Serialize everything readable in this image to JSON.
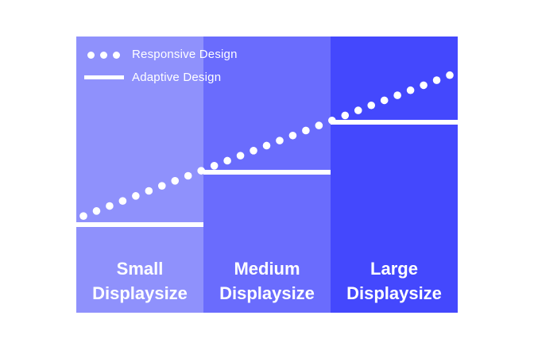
{
  "colors": {
    "small_bg": "#8f91fc",
    "medium_bg": "#6a6cfd",
    "large_bg": "#4448fd",
    "marks": "#ffffff",
    "background": "#ffffff"
  },
  "legend": {
    "responsive_label": "Responsive Design",
    "adaptive_label": "Adaptive Design",
    "responsive_icon": "dotted-line-icon",
    "adaptive_icon": "solid-line-icon"
  },
  "columns": [
    {
      "line1": "Small",
      "line2": "Displaysize",
      "adaptive_level": 0.32
    },
    {
      "line1": "Medium",
      "line2": "Displaysize",
      "adaptive_level": 0.51
    },
    {
      "line1": "Large",
      "line2": "Displaysize",
      "adaptive_level": 0.69
    }
  ],
  "responsive_trend": {
    "start_level": 0.35,
    "end_level": 0.86,
    "dot_count": 29
  }
}
